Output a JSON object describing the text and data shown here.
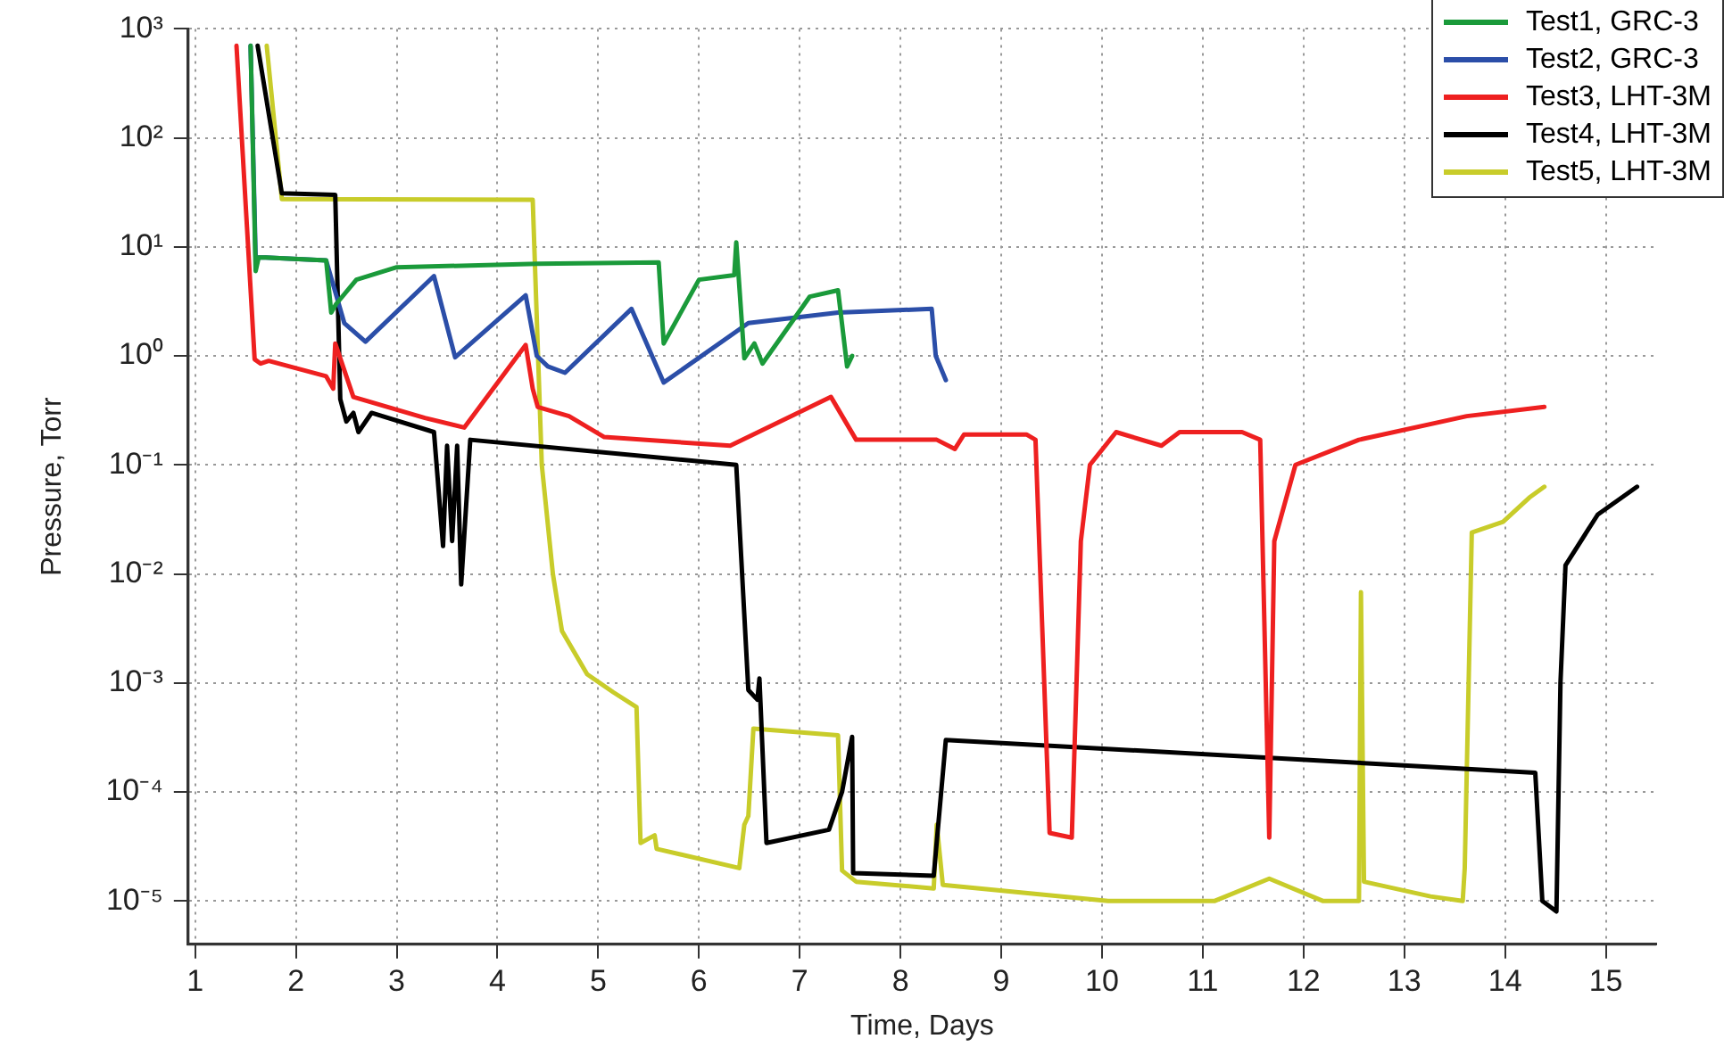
{
  "chart_data": {
    "type": "line",
    "xlabel": "Time, Days",
    "ylabel": "Pressure, Torr",
    "log": "y",
    "grid": true,
    "legend": "top right",
    "marker": "none",
    "line_style": "solid",
    "xlim": [
      0.93,
      15.5
    ],
    "xticks": [
      1,
      2,
      3,
      4,
      5,
      6,
      7,
      8,
      9,
      10,
      11,
      12,
      13,
      14,
      15
    ],
    "ylim": [
      4e-06,
      1000
    ],
    "yticks": [
      {
        "value": 1e-05,
        "label": "10⁻⁵"
      },
      {
        "value": 0.0001,
        "label": "10⁻⁴"
      },
      {
        "value": 0.001,
        "label": "10⁻³"
      },
      {
        "value": 0.01,
        "label": "10⁻²"
      },
      {
        "value": 0.1,
        "label": "10⁻¹"
      },
      {
        "value": 1,
        "label": "10⁰"
      },
      {
        "value": 10,
        "label": "10¹"
      },
      {
        "value": 100,
        "label": "10²"
      },
      {
        "value": 1000,
        "label": "10³"
      }
    ],
    "series": [
      {
        "name": "Test1, GRC-3",
        "color": "#1a9a3a",
        "x": [
          1.55,
          1.6,
          1.63,
          1.7,
          2.3,
          2.35,
          2.4,
          2.6,
          3,
          4.4,
          5.6,
          5.65,
          6,
          6.35,
          6.37,
          6.45,
          6.55,
          6.63,
          7.1,
          7.38,
          7.47,
          7.52
        ],
        "values": [
          700,
          6,
          8,
          8,
          7.5,
          2.5,
          3,
          5,
          6.5,
          7,
          7.2,
          1.3,
          5,
          5.5,
          11,
          0.95,
          1.3,
          0.85,
          3.5,
          4,
          0.8,
          1
        ]
      },
      {
        "name": "Test2, GRC-3",
        "color": "#2b4ea8",
        "x": [
          1.55,
          1.6,
          1.7,
          2.3,
          2.48,
          2.69,
          3.37,
          3.58,
          4.28,
          4.39,
          4.5,
          4.67,
          5.33,
          5.65,
          6.49,
          7.38,
          8.31,
          8.35,
          8.45
        ],
        "values": [
          700,
          8,
          8,
          7.5,
          2,
          1.35,
          5.4,
          0.97,
          3.6,
          1,
          0.8,
          0.7,
          2.7,
          0.57,
          2,
          2.5,
          2.7,
          1,
          0.6
        ]
      },
      {
        "name": "Test3, LHT-3M",
        "color": "#ee2020",
        "x": [
          1.41,
          1.59,
          1.65,
          1.73,
          2.3,
          2.37,
          2.39,
          2.57,
          3.28,
          3.67,
          4.28,
          4.35,
          4.4,
          4.71,
          5.06,
          6.31,
          7.31,
          7.56,
          8.36,
          8.54,
          8.63,
          9.25,
          9.34,
          9.48,
          9.7,
          9.79,
          9.88,
          10.14,
          10.59,
          10.77,
          11.39,
          11.57,
          11.66,
          11.71,
          11.92,
          12.55,
          13.62,
          14.39
        ],
        "values": [
          700,
          0.93,
          0.85,
          0.9,
          0.65,
          0.5,
          1.3,
          0.42,
          0.27,
          0.22,
          1.26,
          0.5,
          0.34,
          0.28,
          0.18,
          0.15,
          0.42,
          0.17,
          0.17,
          0.14,
          0.19,
          0.19,
          0.17,
          4.2e-05,
          3.8e-05,
          0.02,
          0.1,
          0.2,
          0.15,
          0.2,
          0.2,
          0.17,
          3.8e-05,
          0.02,
          0.1,
          0.17,
          0.28,
          0.34
        ]
      },
      {
        "name": "Test4, LHT-3M",
        "color": "#000000",
        "x": [
          1.62,
          1.86,
          2.39,
          2.44,
          2.5,
          2.57,
          2.62,
          2.75,
          3.37,
          3.46,
          3.5,
          3.55,
          3.6,
          3.64,
          3.73,
          6.37,
          6.49,
          6.58,
          6.6,
          6.67,
          7.29,
          7.42,
          7.52,
          7.53,
          8.33,
          8.45,
          14.3,
          14.37,
          14.51,
          14.55,
          14.6,
          14.92,
          15.31
        ],
        "values": [
          700,
          31,
          30,
          0.4,
          0.25,
          0.3,
          0.2,
          0.3,
          0.2,
          0.018,
          0.15,
          0.02,
          0.15,
          0.008,
          0.17,
          0.1,
          0.00086,
          0.0007,
          0.0011,
          3.4e-05,
          4.5e-05,
          0.0001,
          0.00032,
          1.8e-05,
          1.7e-05,
          0.0003,
          0.00015,
          1e-05,
          8e-06,
          0.001,
          0.012,
          0.035,
          0.063
        ]
      },
      {
        "name": "Test5, LHT-3M",
        "color": "#c8cc2a",
        "x": [
          1.71,
          1.86,
          4.35,
          4.44,
          4.55,
          4.64,
          4.89,
          5.15,
          5.38,
          5.42,
          5.56,
          5.58,
          6.4,
          6.45,
          6.49,
          6.54,
          7.38,
          7.42,
          7.56,
          8.33,
          8.36,
          8.42,
          10.06,
          11.12,
          11.66,
          12.19,
          12.55,
          12.57,
          12.6,
          13.26,
          13.58,
          13.6,
          13.67,
          13.98,
          14.24,
          14.39
        ],
        "values": [
          700,
          27.5,
          27,
          0.1,
          0.01,
          0.003,
          0.0012,
          0.00082,
          0.0006,
          3.4e-05,
          4e-05,
          3e-05,
          2e-05,
          5e-05,
          6e-05,
          0.00038,
          0.00033,
          1.9e-05,
          1.5e-05,
          1.3e-05,
          5e-05,
          1.4e-05,
          1e-05,
          1e-05,
          1.6e-05,
          1e-05,
          1e-05,
          0.0068,
          1.5e-05,
          1.1e-05,
          1e-05,
          2e-05,
          0.024,
          0.03,
          0.05,
          0.063
        ]
      }
    ]
  }
}
